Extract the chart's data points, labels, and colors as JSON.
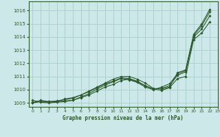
{
  "title": "Graphe pression niveau de la mer (hPa)",
  "background_color": "#cce8e8",
  "grid_color": "#aacccc",
  "line_color": "#2d5a2d",
  "xlim": [
    -0.5,
    23
  ],
  "ylim": [
    1008.7,
    1016.7
  ],
  "yticks": [
    1009,
    1010,
    1011,
    1012,
    1013,
    1014,
    1015,
    1016
  ],
  "xticks": [
    0,
    1,
    2,
    3,
    4,
    5,
    6,
    7,
    8,
    9,
    10,
    11,
    12,
    13,
    14,
    15,
    16,
    17,
    18,
    19,
    20,
    21,
    22,
    23
  ],
  "series": [
    [
      1009.0,
      1009.2,
      1009.1,
      1009.1,
      1009.3,
      1009.4,
      1009.6,
      1009.9,
      1010.2,
      1010.5,
      1010.8,
      1011.0,
      1011.0,
      1010.8,
      1010.5,
      1010.1,
      1010.05,
      1010.2,
      1011.3,
      1011.5,
      1014.2,
      1015.0,
      1016.1
    ],
    [
      1009.0,
      1009.1,
      1009.05,
      1009.1,
      1009.15,
      1009.2,
      1009.4,
      1009.6,
      1009.9,
      1010.2,
      1010.4,
      1010.7,
      1010.8,
      1010.6,
      1010.3,
      1010.05,
      1009.95,
      1010.15,
      1010.85,
      1011.0,
      1013.8,
      1014.3,
      1015.15
    ],
    [
      1009.05,
      1009.1,
      1009.1,
      1009.15,
      1009.25,
      1009.35,
      1009.6,
      1009.85,
      1010.15,
      1010.45,
      1010.65,
      1010.9,
      1010.85,
      1010.65,
      1010.3,
      1010.05,
      1010.1,
      1010.3,
      1011.1,
      1011.35,
      1014.0,
      1014.6,
      1015.6
    ],
    [
      1009.2,
      1009.05,
      1009.0,
      1009.05,
      1009.1,
      1009.2,
      1009.45,
      1009.7,
      1010.05,
      1010.35,
      1010.6,
      1010.85,
      1010.75,
      1010.55,
      1010.2,
      1010.0,
      1010.2,
      1010.45,
      1011.2,
      1011.45,
      1014.1,
      1014.85,
      1015.9
    ]
  ]
}
